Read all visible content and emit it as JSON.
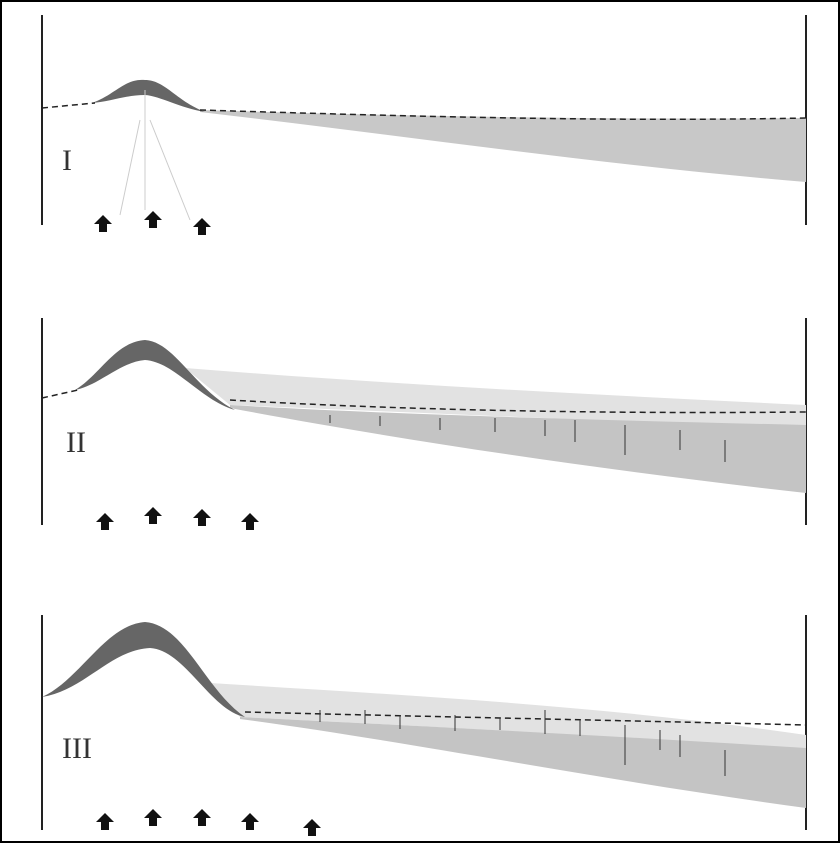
{
  "panels": [
    {
      "label": "I"
    },
    {
      "label": "II"
    },
    {
      "label": "III"
    }
  ]
}
